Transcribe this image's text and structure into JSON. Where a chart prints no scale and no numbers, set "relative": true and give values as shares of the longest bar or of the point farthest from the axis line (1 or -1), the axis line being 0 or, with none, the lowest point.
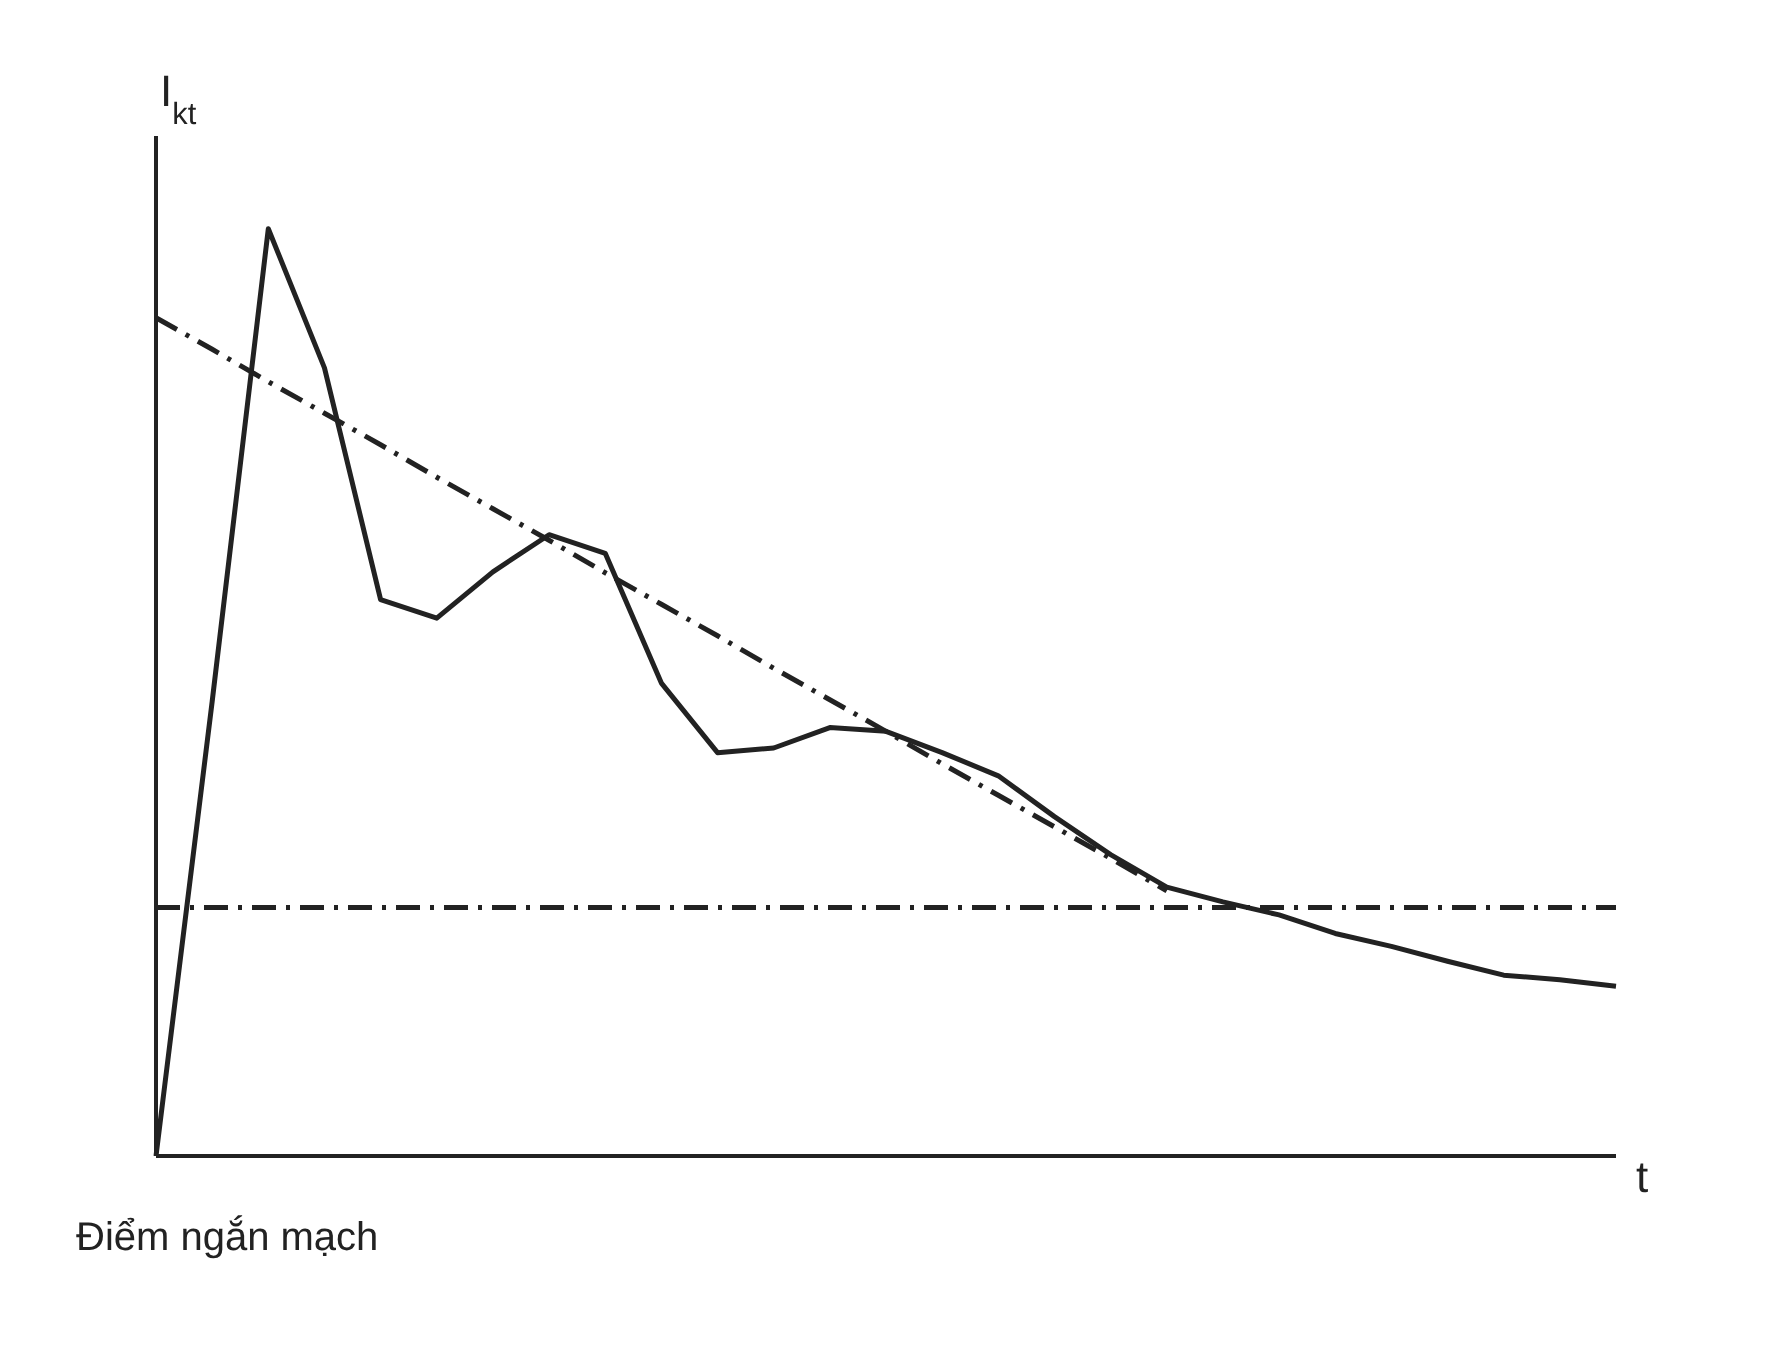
{
  "chart_data": {
    "type": "line",
    "relative": true,
    "xlabel": "t",
    "ylabel": "I$_{kt}$",
    "annotations": [
      "Điểm ngắn mạch"
    ],
    "marker": "none",
    "categories": [
      null,
      null,
      null,
      null,
      null,
      null,
      null,
      null,
      null,
      null,
      null,
      null,
      null,
      null,
      null,
      null,
      null,
      null,
      null,
      null,
      null,
      null,
      null,
      null,
      null,
      null,
      null
    ],
    "series": [
      {
        "color": "#222222",
        "line_style": "solid",
        "values": [
          0,
          0.49,
          1.0,
          0.85,
          0.6,
          0.58,
          0.63,
          0.67,
          0.65,
          0.51,
          0.435,
          0.44,
          0.462,
          0.458,
          0.435,
          0.41,
          0.366,
          0.325,
          0.29,
          0.274,
          0.26,
          0.24,
          0.226,
          0.21,
          0.195,
          0.19,
          0.183
        ]
      },
      {
        "color": "#222222",
        "line_style": "dashed",
        "values": [
          0.904,
          0.87,
          0.835,
          0.801,
          0.767,
          0.732,
          0.698,
          0.664,
          0.629,
          0.595,
          0.561,
          0.526,
          0.492,
          0.458,
          0.423,
          0.389,
          0.355,
          0.321,
          0.286,
          null,
          null,
          null,
          null,
          null,
          null,
          null,
          null
        ]
      },
      {
        "color": "#222222",
        "line_style": "dashed",
        "values": [
          0.268,
          0.268,
          0.268,
          0.268,
          0.268,
          0.268,
          0.268,
          0.268,
          0.268,
          0.268,
          0.268,
          0.268,
          0.268,
          0.268,
          0.268,
          0.268,
          0.268,
          0.268,
          0.268,
          0.268,
          0.268,
          0.268,
          0.268,
          0.268,
          0.268,
          0.268,
          0.268
        ]
      }
    ]
  }
}
